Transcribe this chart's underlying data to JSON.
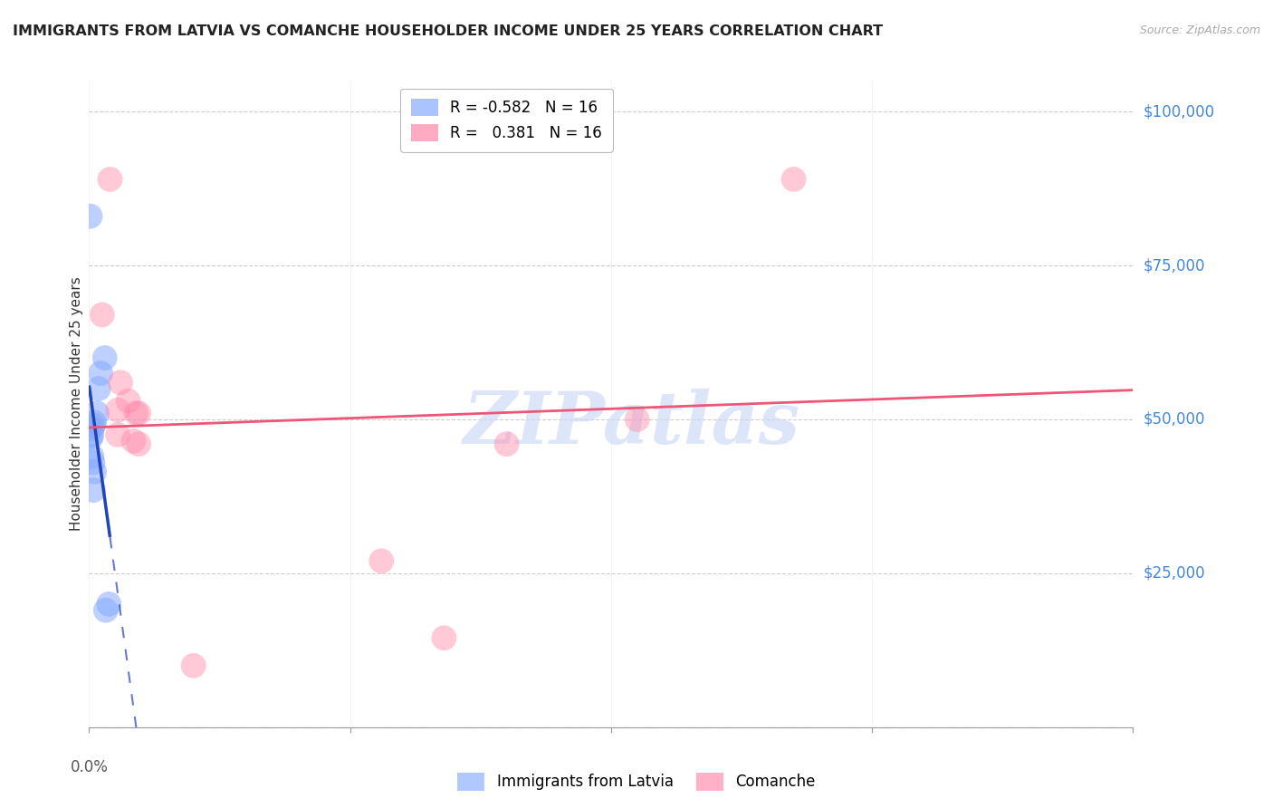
{
  "title": "IMMIGRANTS FROM LATVIA VS COMANCHE HOUSEHOLDER INCOME UNDER 25 YEARS CORRELATION CHART",
  "source": "Source: ZipAtlas.com",
  "ylabel": "Householder Income Under 25 years",
  "background_color": "#ffffff",
  "legend_r_blue": "-0.582",
  "legend_n_blue": "16",
  "legend_r_pink": "0.381",
  "legend_n_pink": "16",
  "blue_color": "#88aaff",
  "pink_color": "#ff88aa",
  "blue_line_color": "#2244bb",
  "pink_line_color": "#ee5577",
  "grid_color": "#cccccc",
  "right_label_color": "#4488dd",
  "blue_scatter": [
    [
      0.0002,
      83000
    ],
    [
      0.003,
      60000
    ],
    [
      0.0022,
      57500
    ],
    [
      0.0018,
      55000
    ],
    [
      0.0015,
      51000
    ],
    [
      0.001,
      49500
    ],
    [
      0.0008,
      49000
    ],
    [
      0.0005,
      48500
    ],
    [
      0.0005,
      47500
    ],
    [
      0.0003,
      47000
    ],
    [
      0.0005,
      44000
    ],
    [
      0.0007,
      43000
    ],
    [
      0.001,
      41500
    ],
    [
      0.0008,
      38500
    ],
    [
      0.0038,
      20000
    ],
    [
      0.0032,
      19000
    ]
  ],
  "pink_scatter": [
    [
      0.004,
      89000
    ],
    [
      0.135,
      89000
    ],
    [
      0.0025,
      67000
    ],
    [
      0.006,
      56000
    ],
    [
      0.0075,
      53000
    ],
    [
      0.0055,
      51500
    ],
    [
      0.009,
      51000
    ],
    [
      0.0095,
      51000
    ],
    [
      0.0055,
      47500
    ],
    [
      0.0085,
      46500
    ],
    [
      0.0095,
      46000
    ],
    [
      0.105,
      50000
    ],
    [
      0.056,
      27000
    ],
    [
      0.02,
      10000
    ],
    [
      0.068,
      14500
    ],
    [
      0.08,
      46000
    ]
  ],
  "xlim": [
    0.0,
    0.2
  ],
  "ylim": [
    0,
    105000
  ],
  "x_ticks": [
    0.0,
    0.05,
    0.1,
    0.15,
    0.2
  ],
  "y_ticks": [
    0,
    25000,
    50000,
    75000,
    100000
  ],
  "y_tick_labels": [
    "",
    "$25,000",
    "$50,000",
    "$75,000",
    "$100,000"
  ],
  "watermark": "ZIPatlas",
  "dot_size": 400
}
